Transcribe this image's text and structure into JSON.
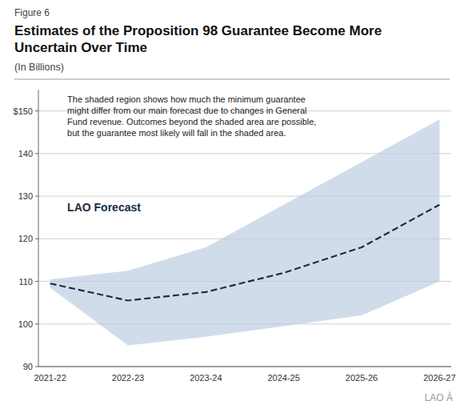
{
  "chart_data": {
    "type": "line",
    "title": "Estimates of the Proposition 98 Guarantee Become More Uncertain Over Time",
    "subtitle": "(In Billions)",
    "annotations": [
      "Figure 6",
      "The shaded region shows how much the minimum guarantee might differ from our main forecast due to changes in General Fund revenue. Outcomes beyond the shaded area are possible, but the guarantee most likely will fall in the shaded area.",
      "LAO À"
    ],
    "categories": [
      "2021-22",
      "2022-23",
      "2023-24",
      "2024-25",
      "2025-26",
      "2026-27"
    ],
    "series": [
      {
        "name": "LAO Forecast",
        "color": "#1a2e44",
        "line_style": "dashed",
        "values": [
          109.5,
          105.5,
          107.5,
          112.0,
          118.0,
          128.0
        ]
      }
    ],
    "band": {
      "lower": [
        108.5,
        95.0,
        97.0,
        99.5,
        102.0,
        110.0
      ],
      "upper": [
        110.5,
        112.5,
        118.0,
        128.0,
        138.0,
        148.0
      ],
      "color": "#b8c9e0"
    },
    "ylim": [
      90,
      155
    ],
    "yticks": [
      90,
      100,
      110,
      120,
      130,
      140,
      {
        "value": 150,
        "label": "$150"
      }
    ],
    "grid": true
  }
}
